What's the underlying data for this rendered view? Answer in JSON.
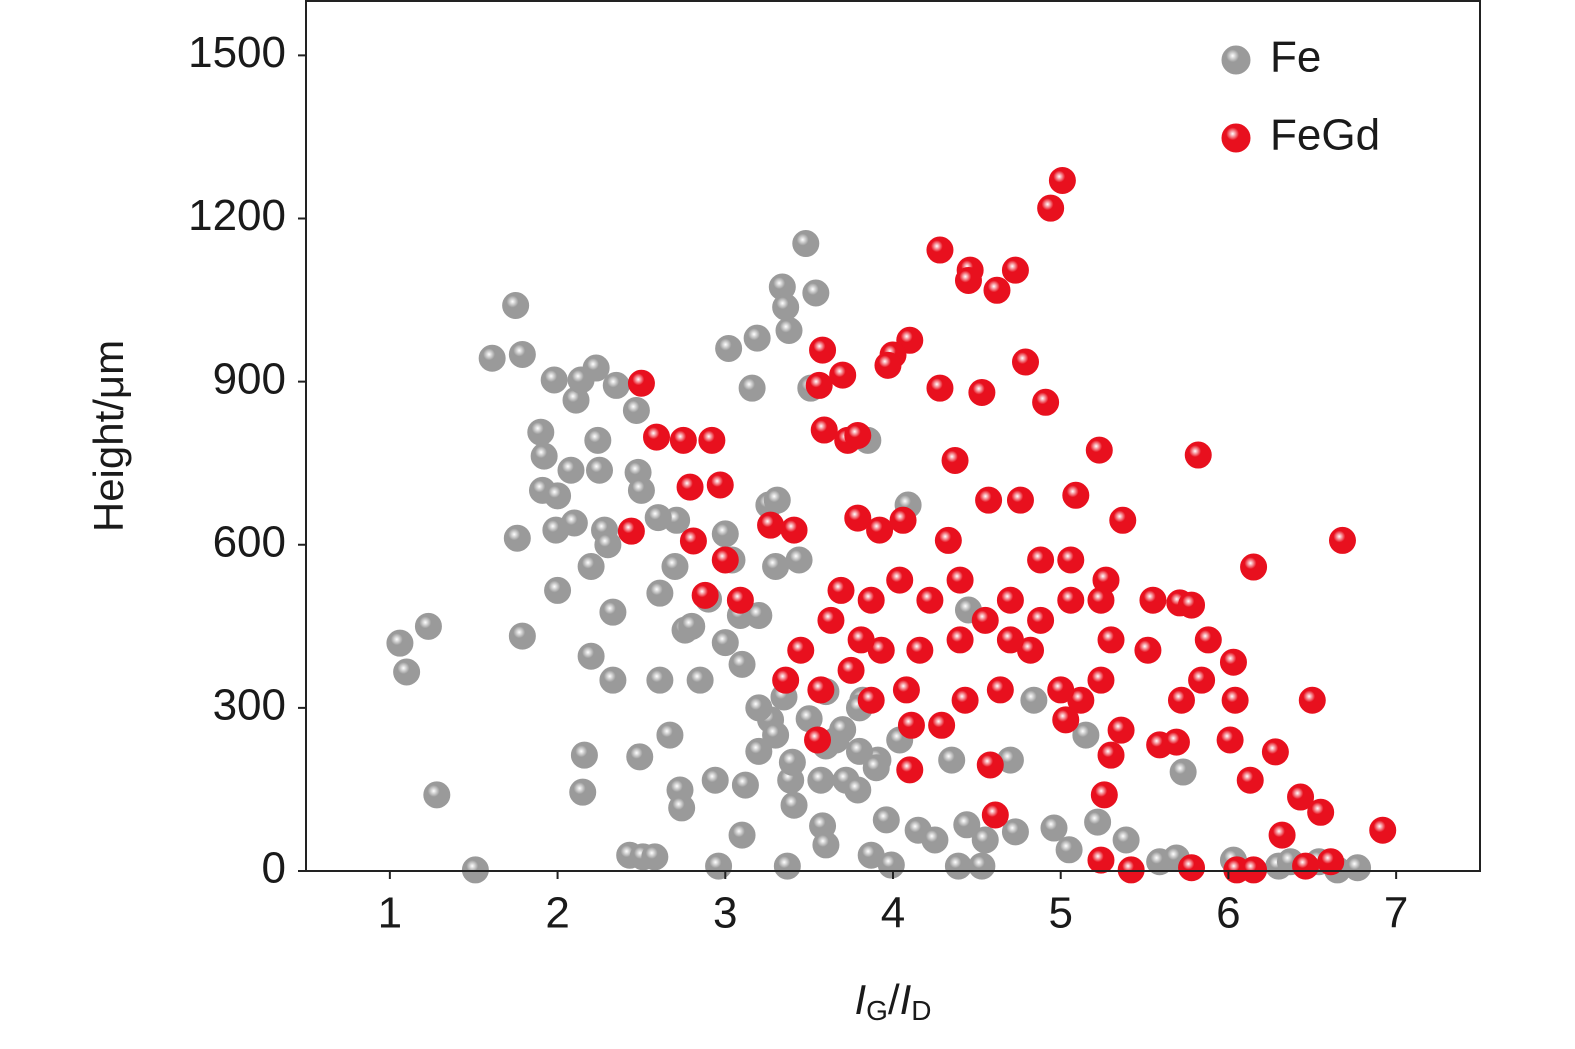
{
  "chart_data": {
    "type": "scatter",
    "x_label": [
      "I",
      "G",
      "/",
      "I",
      "D"
    ],
    "y_label": "Height/μm",
    "xlim": [
      0.5,
      7.5
    ],
    "ylim": [
      0,
      1600
    ],
    "xticks": [
      1,
      2,
      3,
      4,
      5,
      6,
      7
    ],
    "yticks": [
      0,
      300,
      600,
      900,
      1200,
      1500
    ],
    "legend": "upper right",
    "series": [
      {
        "name": "Fe",
        "color": "#9a9a9a",
        "x": [
          1.06,
          1.1,
          1.23,
          1.28,
          1.51,
          1.61,
          1.75,
          1.79,
          1.79,
          1.76,
          1.9,
          1.92,
          1.91,
          1.98,
          1.99,
          2.0,
          2.08,
          2.11,
          2.14,
          2.16,
          2.15,
          2.2,
          2.23,
          2.24,
          2.25,
          2.28,
          2.33,
          2.33,
          2.35,
          2.43,
          2.47,
          2.48,
          2.49,
          2.51,
          2.58,
          2.61,
          2.61,
          2.67,
          2.71,
          2.73,
          2.74,
          2.76,
          2.85,
          2.94,
          2.96,
          3.02,
          3.04,
          3.09,
          3.1,
          3.12,
          3.16,
          3.19,
          3.26,
          3.27,
          3.31,
          3.34,
          3.36,
          3.38,
          3.37,
          3.39,
          3.41,
          3.44,
          3.48,
          3.54,
          3.51,
          3.57,
          3.58,
          3.6,
          3.66,
          3.72,
          3.79,
          3.82,
          3.85,
          3.87,
          3.91,
          3.99,
          3.96,
          4.04,
          4.09,
          4.15,
          4.25,
          4.35,
          4.39,
          4.44,
          4.45,
          4.53,
          4.55,
          4.7,
          4.73,
          4.84,
          4.96,
          5.05,
          5.15,
          5.22,
          5.39,
          5.59,
          5.69,
          5.73,
          6.03,
          6.3,
          6.37,
          6.54,
          6.65,
          6.77,
          3.0,
          3.1,
          3.2,
          3.3,
          3.4,
          3.5,
          3.6,
          3.7,
          3.8,
          3.9,
          2.8,
          2.9,
          2.7,
          3.0,
          2.6,
          2.5,
          2.3,
          2.2,
          2.1,
          2.0,
          3.2,
          3.3,
          3.2,
          3.35,
          3.6,
          3.8
        ],
        "values": [
          419,
          366,
          450,
          140,
          2,
          943,
          1040,
          950,
          432,
          612,
          807,
          763,
          700,
          903,
          627,
          516,
          737,
          866,
          903,
          213,
          145,
          395,
          925,
          792,
          737,
          627,
          476,
          351,
          893,
          29,
          847,
          733,
          210,
          26,
          26,
          511,
          351,
          250,
          645,
          149,
          116,
          443,
          351,
          167,
          9,
          961,
          572,
          470,
          66,
          158,
          888,
          980,
          673,
          278,
          682,
          1074,
          1037,
          994,
          9,
          167,
          121,
          572,
          1154,
          1063,
          888,
          167,
          83,
          48,
          241,
          167,
          149,
          314,
          792,
          29,
          204,
          11,
          94,
          241,
          673,
          75,
          57,
          204,
          9,
          85,
          480,
          9,
          57,
          204,
          72,
          314,
          79,
          39,
          250,
          90,
          57,
          17,
          24,
          182,
          20,
          9,
          17,
          17,
          2,
          6,
          420,
          380,
          300,
          250,
          200,
          280,
          230,
          260,
          220,
          190,
          450,
          500,
          560,
          620,
          650,
          700,
          600,
          560,
          640,
          690,
          470,
          560,
          220,
          320,
          330,
          300
        ]
      },
      {
        "name": "FeGd",
        "color": "#e8101e",
        "x": [
          2.5,
          2.44,
          2.59,
          2.75,
          2.79,
          2.92,
          2.97,
          2.81,
          2.88,
          3.0,
          3.09,
          3.27,
          3.41,
          3.55,
          3.58,
          3.56,
          3.7,
          3.59,
          3.73,
          3.79,
          3.79,
          3.92,
          4.1,
          4.0,
          3.97,
          4.06,
          4.1,
          4.11,
          4.28,
          4.28,
          4.33,
          4.37,
          4.46,
          4.45,
          4.53,
          4.62,
          4.73,
          4.57,
          4.76,
          4.79,
          4.91,
          4.94,
          5.01,
          5.09,
          5.23,
          5.37,
          5.27,
          5.06,
          5.52,
          5.55,
          5.71,
          5.78,
          5.82,
          5.88,
          6.03,
          6.15,
          6.04,
          6.01,
          6.13,
          6.28,
          6.32,
          6.43,
          6.5,
          6.55,
          6.68,
          6.92,
          5.59,
          5.69,
          5.84,
          5.72,
          5.26,
          5.3,
          5.36,
          5.24,
          5.42,
          5.78,
          6.05,
          6.15,
          6.46,
          6.61,
          5.24,
          5.12,
          5.03,
          4.82,
          4.64,
          4.58,
          4.61,
          4.43,
          4.29,
          4.08,
          3.93,
          3.81,
          3.63,
          3.45,
          3.36,
          3.57,
          3.69,
          3.87,
          4.04,
          4.22,
          4.4,
          4.55,
          4.7,
          4.88,
          5.06,
          5.24,
          5.3,
          4.88,
          4.4,
          4.16,
          4.7,
          3.87,
          3.75,
          5.0
        ],
        "values": [
          897,
          625,
          798,
          792,
          706,
          792,
          710,
          607,
          507,
          572,
          498,
          636,
          627,
          241,
          958,
          893,
          912,
          811,
          792,
          801,
          649,
          627,
          976,
          949,
          930,
          645,
          186,
          268,
          1142,
          888,
          608,
          755,
          1105,
          1086,
          880,
          1068,
          1105,
          682,
          682,
          936,
          862,
          1219,
          1270,
          691,
          774,
          645,
          535,
          572,
          406,
          498,
          493,
          489,
          765,
          425,
          384,
          559,
          314,
          241,
          167,
          219,
          66,
          136,
          314,
          108,
          608,
          75,
          232,
          237,
          351,
          314,
          140,
          213,
          259,
          20,
          2,
          6,
          2,
          2,
          9,
          17,
          351,
          314,
          278,
          406,
          333,
          195,
          103,
          314,
          268,
          333,
          406,
          425,
          461,
          406,
          351,
          333,
          516,
          498,
          535,
          498,
          535,
          461,
          498,
          461,
          498,
          498,
          425,
          572,
          425,
          406,
          425,
          314,
          369,
          333
        ]
      }
    ]
  }
}
